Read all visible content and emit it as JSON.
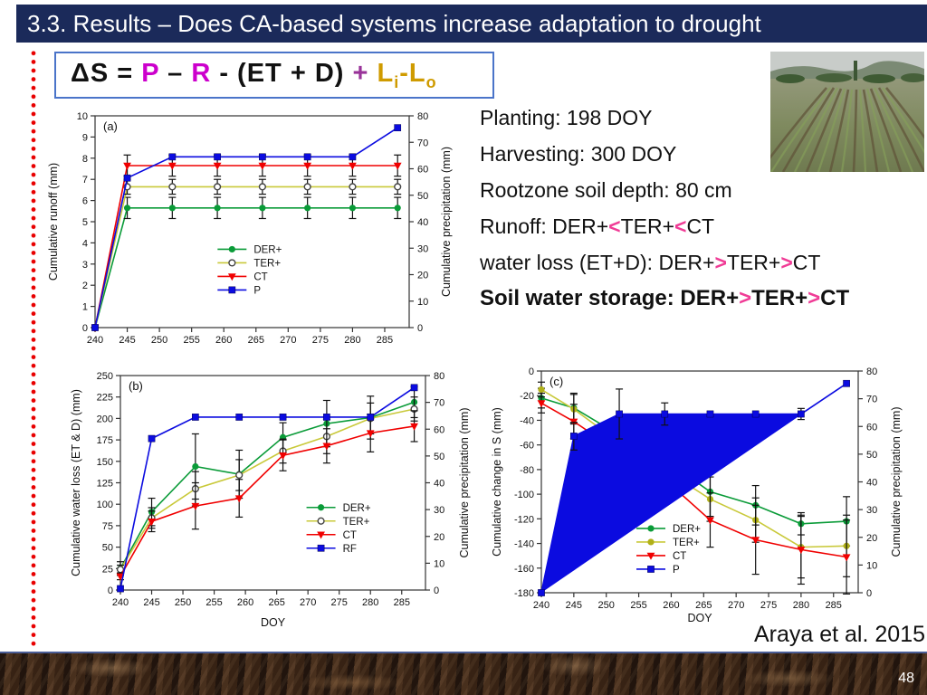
{
  "title_bar": {
    "text": "3.3. Results – Does CA-based systems increase adaptation to drought"
  },
  "formula": {
    "parts": [
      {
        "t": "ΔS = ",
        "c": "#111111"
      },
      {
        "t": "P",
        "c": "#cc00cc"
      },
      {
        "t": " – ",
        "c": "#111111"
      },
      {
        "t": "R",
        "c": "#cc00cc"
      },
      {
        "t": " - (ET + D) ",
        "c": "#111111"
      },
      {
        "t": "+ ",
        "c": "#993399"
      },
      {
        "t": "L",
        "c": "#cf9b00"
      },
      {
        "t": "i",
        "c": "#cf9b00",
        "sub": true
      },
      {
        "t": "-L",
        "c": "#cf9b00"
      },
      {
        "t": "o",
        "c": "#cf9b00",
        "sub": true
      }
    ]
  },
  "info_panel": {
    "lines": [
      {
        "bold": false,
        "segments": [
          {
            "t": "Planting: 198 DOY"
          }
        ]
      },
      {
        "bold": false,
        "segments": [
          {
            "t": "Harvesting: 300 DOY"
          }
        ]
      },
      {
        "bold": false,
        "segments": [
          {
            "t": "Rootzone soil depth: 80 cm"
          }
        ]
      },
      {
        "bold": false,
        "segments": [
          {
            "t": "Runoff: DER+"
          },
          {
            "t": "<",
            "c": "#f03c96"
          },
          {
            "t": "TER+"
          },
          {
            "t": "<",
            "c": "#f03c96"
          },
          {
            "t": "CT"
          }
        ]
      },
      {
        "bold": false,
        "segments": [
          {
            "t": "water loss (ET+D): DER+"
          },
          {
            "t": ">",
            "c": "#f03c96"
          },
          {
            "t": "TER+"
          },
          {
            "t": ">",
            "c": "#f03c96"
          },
          {
            "t": "CT"
          }
        ]
      },
      {
        "bold": true,
        "segments": [
          {
            "t": "Soil water storage: DER+"
          },
          {
            "t": ">",
            "c": "#f03c96"
          },
          {
            "t": "TER+"
          },
          {
            "t": ">",
            "c": "#f03c96"
          },
          {
            "t": "CT"
          }
        ]
      }
    ]
  },
  "citation": "Araya et al. 2015",
  "footer": {
    "page_number": "48"
  },
  "chart_data": [
    {
      "id": "a",
      "panel_label": "(a)",
      "type": "line",
      "x": [
        240,
        245,
        252,
        259,
        266,
        273,
        280,
        287
      ],
      "x_range": [
        240,
        288.8
      ],
      "x_ticks": {
        "from": 240,
        "to": 285,
        "step": 5
      },
      "xlabel": "",
      "left_axis": {
        "label": "Cumulative runoff (mm)",
        "range": [
          0,
          10
        ],
        "step": 1
      },
      "right_axis": {
        "label": "Cumulative precipitation (mm)",
        "range": [
          0,
          80
        ],
        "step": 10
      },
      "series": [
        {
          "name": "DER+",
          "axis": "left",
          "color": "#0a9b38",
          "marker": "circle",
          "y": [
            0,
            5.65,
            5.65,
            5.65,
            5.65,
            5.65,
            5.65,
            5.65
          ],
          "err": [
            0,
            0.5,
            0.5,
            0.5,
            0.5,
            0.5,
            0.5,
            0.5
          ]
        },
        {
          "name": "TER+",
          "axis": "left",
          "color": "#c9c93a",
          "marker": "circle-open",
          "y": [
            0,
            6.65,
            6.65,
            6.65,
            6.65,
            6.65,
            6.65,
            6.65
          ],
          "err": [
            0,
            0.35,
            0.35,
            0.35,
            0.35,
            0.35,
            0.35,
            0.35
          ]
        },
        {
          "name": "CT",
          "axis": "left",
          "color": "#f00000",
          "marker": "triangle-down",
          "y": [
            0,
            7.65,
            7.65,
            7.65,
            7.65,
            7.65,
            7.65,
            7.65
          ],
          "err": [
            0,
            0.5,
            0.5,
            0.5,
            0.5,
            0.5,
            0.5,
            0.5
          ]
        },
        {
          "name": "P",
          "axis": "right",
          "color": "#0b0be0",
          "marker": "square",
          "y": [
            0,
            56.5,
            64.5,
            64.5,
            64.5,
            64.5,
            64.5,
            75.5
          ],
          "err": [
            0,
            0,
            0,
            0,
            0,
            0,
            0,
            0
          ]
        }
      ]
    },
    {
      "id": "b",
      "panel_label": "(b)",
      "type": "line",
      "x": [
        240,
        245,
        252,
        259,
        266,
        273,
        280,
        287
      ],
      "x_range": [
        240,
        288.8
      ],
      "x_ticks": {
        "from": 240,
        "to": 285,
        "step": 5
      },
      "xlabel": "DOY",
      "left_axis": {
        "label": "Cumulative water loss (ET & D) (mm)",
        "range": [
          0,
          250
        ],
        "step": 25
      },
      "right_axis": {
        "label": "Cumulative precipitation (mm)",
        "range": [
          0,
          80
        ],
        "step": 10
      },
      "series": [
        {
          "name": "DER+",
          "axis": "left",
          "color": "#0a9b38",
          "marker": "circle",
          "y": [
            25,
            91,
            144,
            135,
            178,
            194,
            201,
            219
          ],
          "err": [
            8,
            16,
            38,
            28,
            17,
            27,
            25,
            18
          ]
        },
        {
          "name": "TER+",
          "axis": "left",
          "color": "#c9c93a",
          "marker": "circle-open",
          "y": [
            24,
            84,
            118,
            134,
            162,
            179,
            200,
            211
          ],
          "err": [
            5,
            12,
            20,
            18,
            14,
            20,
            18,
            14
          ]
        },
        {
          "name": "CT",
          "axis": "left",
          "color": "#f00000",
          "marker": "triangle-down",
          "y": [
            16,
            80,
            98,
            107,
            157,
            168,
            183,
            191
          ],
          "err": [
            4,
            12,
            27,
            22,
            18,
            20,
            22,
            18
          ]
        },
        {
          "name": "RF",
          "axis": "right",
          "color": "#0b0be0",
          "marker": "square",
          "y": [
            0.5,
            56.5,
            64.5,
            64.5,
            64.5,
            64.5,
            64.5,
            75.5
          ],
          "err": [
            0,
            0,
            0,
            0,
            0,
            0,
            0,
            0
          ]
        }
      ]
    },
    {
      "id": "c",
      "panel_label": "(c)",
      "type": "line",
      "x": [
        240,
        245,
        252,
        259,
        266,
        273,
        280,
        287
      ],
      "x_range": [
        240,
        288.8
      ],
      "x_ticks": {
        "from": 240,
        "to": 285,
        "step": 5
      },
      "xlabel": "DOY",
      "left_axis": {
        "label": "Cumulative change in S (mm)",
        "range": [
          -180,
          0
        ],
        "step": 20
      },
      "right_axis": {
        "label": "Cumulative precipitation (mm)",
        "range": [
          0,
          80
        ],
        "step": 10
      },
      "series": [
        {
          "name": "DER+",
          "axis": "left",
          "color": "#0a9b38",
          "marker": "circle",
          "y": [
            -22,
            -30,
            -52,
            -72,
            -98,
            -109,
            -124,
            -122
          ],
          "err": [
            8,
            12,
            0,
            0,
            20,
            16,
            9,
            20
          ]
        },
        {
          "name": "TER+",
          "axis": "left",
          "color": "#c9c93a",
          "marker": "circle",
          "marker_color": "#b0b018",
          "y": [
            -15,
            -31,
            -58,
            -80,
            -104,
            -121,
            -143,
            -142
          ],
          "err": [
            6,
            12,
            0,
            0,
            18,
            18,
            25,
            25
          ]
        },
        {
          "name": "CT",
          "axis": "left",
          "color": "#f00000",
          "marker": "triangle-down",
          "y": [
            -26,
            -41,
            -66,
            -88,
            -121,
            -137,
            -145,
            -151
          ],
          "err": [
            8,
            14,
            0,
            0,
            22,
            28,
            28,
            30
          ]
        },
        {
          "name": "P",
          "axis": "right",
          "color": "#0b0be0",
          "marker": "square",
          "fill_to_chord": true,
          "y": [
            0,
            56.5,
            64.5,
            64.5,
            64.5,
            64.5,
            64.5,
            75.5
          ],
          "err": [
            0,
            5,
            9,
            4,
            0,
            0,
            2,
            0
          ]
        }
      ]
    }
  ]
}
